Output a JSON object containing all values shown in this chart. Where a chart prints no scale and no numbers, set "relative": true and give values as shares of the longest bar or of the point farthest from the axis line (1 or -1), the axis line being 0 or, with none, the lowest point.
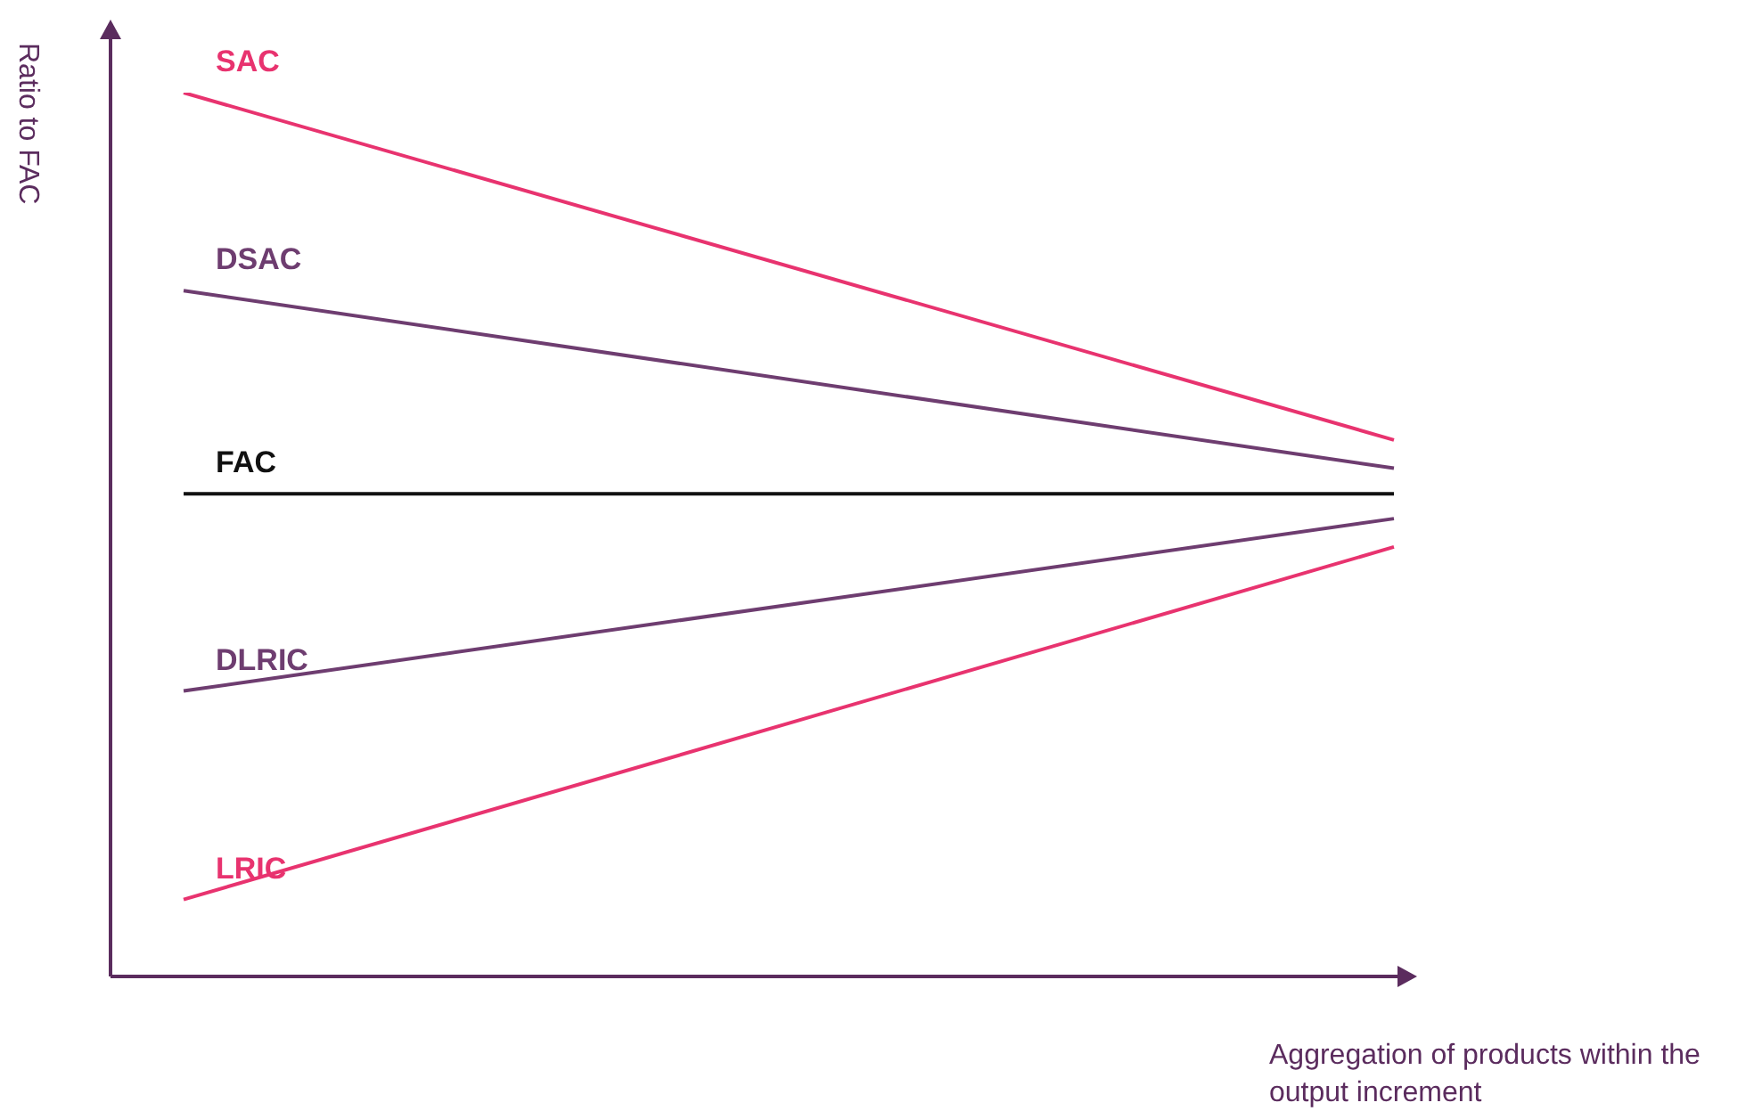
{
  "chart_data": {
    "type": "line",
    "relative": true,
    "ylabel": "Ratio to FAC",
    "xlabel": "Aggregation of products within the output increment",
    "categories": [
      null,
      null
    ],
    "legend": false,
    "marker": "none",
    "line_style": "solid",
    "series": [
      {
        "name": "SAC",
        "color": "#e8336f",
        "values": [
          1,
          0.607
        ]
      },
      {
        "name": "DSAC",
        "color": "#6e3d70",
        "values": [
          0.776,
          0.575
        ]
      },
      {
        "name": "FAC",
        "color": "#111111",
        "values": [
          0.546,
          0.546
        ]
      },
      {
        "name": "DLRIC",
        "color": "#6e3d70",
        "values": [
          0.323,
          0.518
        ]
      },
      {
        "name": "LRIC",
        "color": "#e8336f",
        "values": [
          0.087,
          0.486
        ]
      }
    ]
  }
}
